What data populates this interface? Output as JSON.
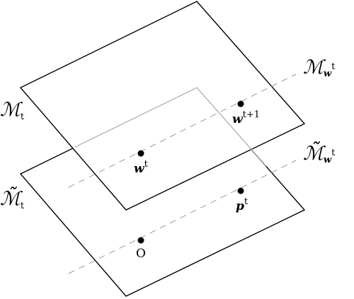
{
  "planes": {
    "upper": {
      "label_main": "ℳ",
      "label_sub": "t"
    },
    "lower": {
      "label_main": "ℳ̃",
      "label_sub": "t"
    }
  },
  "lines": {
    "upper": {
      "label_main": "ℳ",
      "label_sub": "w",
      "label_sup": "t"
    },
    "lower": {
      "label_main": "ℳ̃",
      "label_sub": "w",
      "label_sup": "t"
    }
  },
  "points": {
    "w_t": {
      "main": "w",
      "sup": "t"
    },
    "w_t1": {
      "main": "w",
      "sup": "t+1"
    },
    "p_t": {
      "main": "p",
      "sup": "t"
    },
    "origin": {
      "main": "O"
    }
  },
  "colors": {
    "stroke": "#000000",
    "hidden_edge": "#b3b3b3",
    "dashed": "#9a9a9a",
    "point": "#000000"
  }
}
